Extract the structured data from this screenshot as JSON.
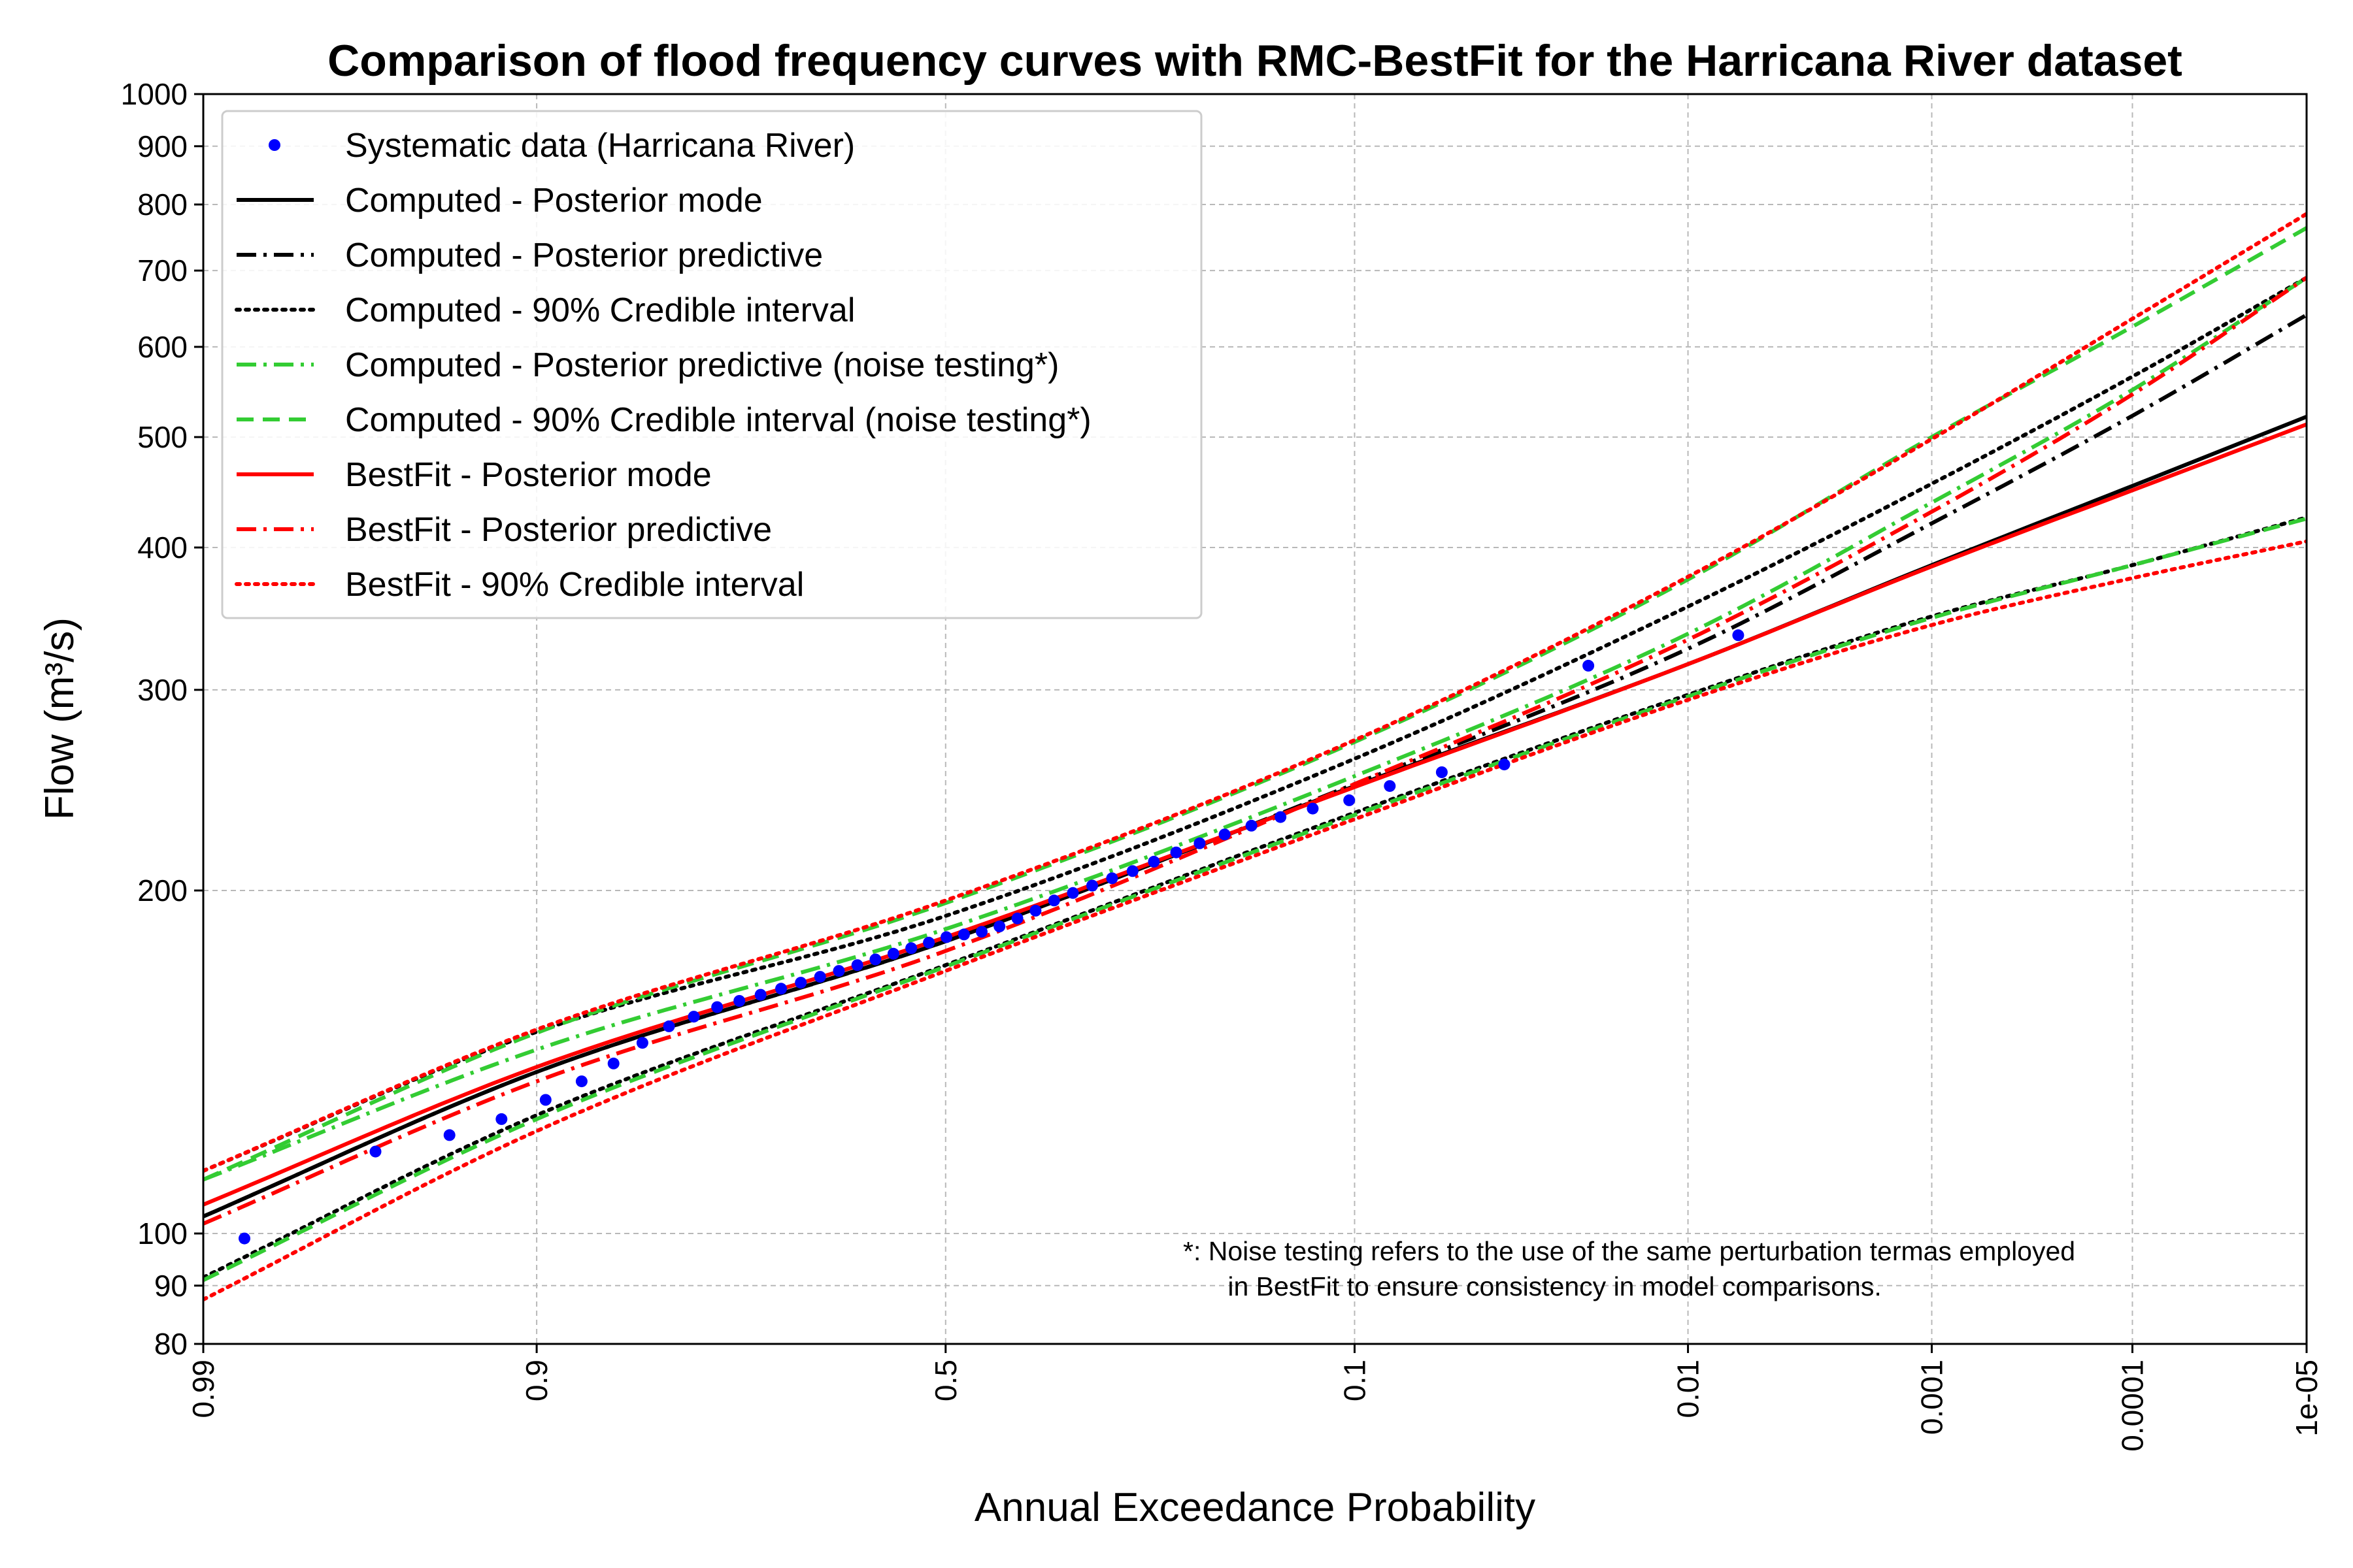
{
  "chart_data": {
    "type": "line",
    "title": "Comparison of flood frequency curves with RMC-BestFit for the Harricana River dataset",
    "xlabel": "Annual Exceedance Probability",
    "ylabel": "Flow (m³/s)",
    "x_scale": "normal-probability",
    "y_scale": "log",
    "xlim": [
      0.99,
      1e-05
    ],
    "ylim": [
      80,
      1000
    ],
    "x_ticks": [
      {
        "value": 0.99,
        "label": "0.99"
      },
      {
        "value": 0.9,
        "label": "0.9"
      },
      {
        "value": 0.5,
        "label": "0.5"
      },
      {
        "value": 0.1,
        "label": "0.1"
      },
      {
        "value": 0.01,
        "label": "0.01"
      },
      {
        "value": 0.001,
        "label": "0.001"
      },
      {
        "value": 0.0001,
        "label": "0.0001"
      },
      {
        "value": 1e-05,
        "label": "1e-05"
      }
    ],
    "y_ticks": [
      {
        "value": 80,
        "label": "80"
      },
      {
        "value": 90,
        "label": "90"
      },
      {
        "value": 100,
        "label": "100"
      },
      {
        "value": 200,
        "label": "200"
      },
      {
        "value": 300,
        "label": "300"
      },
      {
        "value": 400,
        "label": "400"
      },
      {
        "value": 500,
        "label": "500"
      },
      {
        "value": 600,
        "label": "600"
      },
      {
        "value": 700,
        "label": "700"
      },
      {
        "value": 800,
        "label": "800"
      },
      {
        "value": 900,
        "label": "900"
      },
      {
        "value": 1000,
        "label": "1000"
      }
    ],
    "grid": true,
    "legend_position": "upper-left",
    "annotation": "*: Noise testing refers to the use of the same perturbation termas employed\n   in BestFit to ensure consistency in model comparisons.",
    "points": {
      "name": "Systematic data (Harricana River)",
      "color": "#0000ff",
      "x": [
        0.986,
        0.963,
        0.94,
        0.918,
        0.895,
        0.873,
        0.851,
        0.829,
        0.807,
        0.785,
        0.763,
        0.741,
        0.719,
        0.697,
        0.675,
        0.653,
        0.631,
        0.609,
        0.587,
        0.565,
        0.543,
        0.521,
        0.499,
        0.477,
        0.455,
        0.433,
        0.411,
        0.389,
        0.367,
        0.345,
        0.323,
        0.301,
        0.279,
        0.257,
        0.235,
        0.213,
        0.191,
        0.169,
        0.147,
        0.125,
        0.103,
        0.082,
        0.06,
        0.04,
        0.022,
        0.0065
      ],
      "y": [
        99,
        118,
        122,
        126,
        131,
        136,
        141,
        147,
        152,
        155,
        158,
        160,
        162,
        164,
        166,
        168,
        170,
        172,
        174,
        176,
        178,
        180,
        182,
        183,
        184,
        186,
        189,
        192,
        196,
        199,
        202,
        205,
        208,
        212,
        216,
        220,
        224,
        228,
        232,
        236,
        240,
        247,
        254,
        258,
        315,
        335
      ]
    },
    "x_curve": [
      0.99,
      0.9,
      0.5,
      0.1,
      0.01,
      0.001,
      0.0001,
      1e-05
    ],
    "series": [
      {
        "name": "Computed - Posterior mode",
        "color": "#000000",
        "style": "solid",
        "y": [
          103.5,
          138.6,
          180.5,
          247,
          316,
          386,
          453,
          521
        ]
      },
      {
        "name": "Computed - Posterior predictive",
        "color": "#000000",
        "style": "dashdot",
        "y": [
          103.5,
          138.6,
          180.5,
          248,
          326,
          420,
          522,
          640
        ]
      },
      {
        "name": "Computed - 90% Credible interval",
        "color": "#000000",
        "style": "dotted",
        "y": [
          91.5,
          127,
          172,
          234,
          297,
          348,
          386,
          425
        ]
      },
      {
        "name": "Computed - 90% Credible interval",
        "color": "#000000",
        "style": "dotted",
        "y": [
          113.5,
          150.3,
          190,
          261,
          355,
          455,
          565,
          690
        ]
      },
      {
        "name": "Computed - Posterior predictive (noise testing*)",
        "color": "#33cc33",
        "style": "dashdot",
        "y": [
          111.5,
          145,
          185,
          252,
          336,
          438,
          550,
          690
        ]
      },
      {
        "name": "Computed - 90% Credible interval (noise testing*)",
        "color": "#33cc33",
        "style": "dashed",
        "y": [
          91,
          126,
          171.5,
          233,
          296,
          347,
          386,
          424
        ]
      },
      {
        "name": "Computed - 90% Credible interval (noise testing*)",
        "color": "#33cc33",
        "style": "dashed",
        "y": [
          111.5,
          150,
          195,
          270,
          375,
          500,
          625,
          763
        ]
      },
      {
        "name": "BestFit - Posterior mode",
        "color": "#ff0000",
        "style": "solid",
        "y": [
          106,
          140,
          182,
          246.5,
          316,
          385,
          449,
          513
        ]
      },
      {
        "name": "BestFit - Posterior predictive",
        "color": "#ff0000",
        "style": "dashdot",
        "y": [
          102,
          136,
          177,
          248,
          332,
          430,
          545,
          690
        ]
      },
      {
        "name": "BestFit - 90% Credible interval",
        "color": "#ff0000",
        "style": "dotted",
        "y": [
          87.5,
          123,
          170,
          231,
          294,
          342,
          376,
          405
        ]
      },
      {
        "name": "BestFit - 90% Credible interval",
        "color": "#ff0000",
        "style": "dotted",
        "y": [
          113.5,
          151,
          196,
          271,
          377,
          498,
          635,
          785
        ]
      }
    ],
    "legend": [
      {
        "label": "Systematic data (Harricana River)",
        "color": "#0000ff",
        "style": "marker"
      },
      {
        "label": "Computed - Posterior mode",
        "color": "#000000",
        "style": "solid"
      },
      {
        "label": "Computed - Posterior predictive",
        "color": "#000000",
        "style": "dashdot"
      },
      {
        "label": "Computed - 90% Credible interval",
        "color": "#000000",
        "style": "dotted"
      },
      {
        "label": "Computed - Posterior predictive (noise testing*)",
        "color": "#33cc33",
        "style": "dashdot"
      },
      {
        "label": "Computed - 90% Credible interval (noise testing*)",
        "color": "#33cc33",
        "style": "dashed"
      },
      {
        "label": "BestFit - Posterior mode",
        "color": "#ff0000",
        "style": "solid"
      },
      {
        "label": "BestFit - Posterior predictive",
        "color": "#ff0000",
        "style": "dashdot"
      },
      {
        "label": "BestFit - 90% Credible interval",
        "color": "#ff0000",
        "style": "dotted"
      }
    ]
  }
}
